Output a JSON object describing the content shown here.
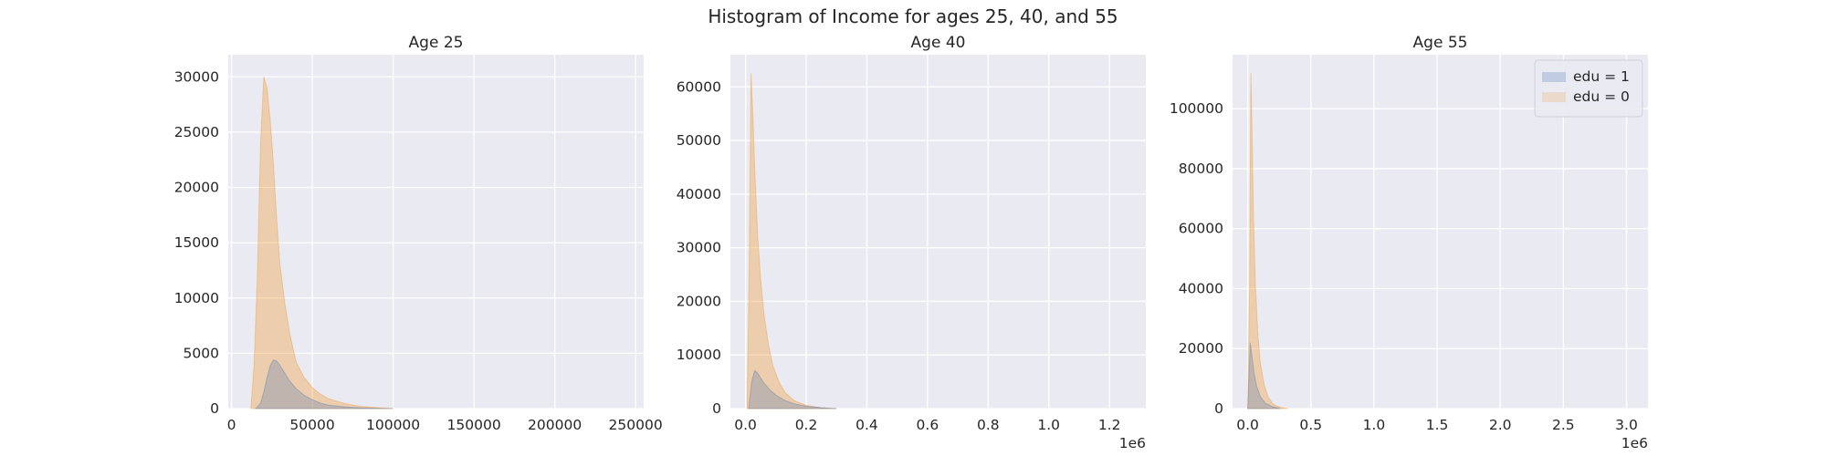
{
  "figure": {
    "title": "Histogram of Income for ages 25, 40, and 55",
    "colors": {
      "background": "#eaeaf2",
      "grid": "#ffffff",
      "edu1": "#4c72b0",
      "edu0": "#f0a040"
    }
  },
  "chart_data": [
    {
      "type": "area",
      "title": "Age 25",
      "xlim": [
        -2000,
        255000
      ],
      "ylim": [
        0,
        32000
      ],
      "xticks": [
        0,
        50000,
        100000,
        150000,
        200000,
        250000
      ],
      "xtick_labels": [
        "0",
        "50000",
        "100000",
        "150000",
        "200000",
        "250000"
      ],
      "yticks": [
        0,
        5000,
        10000,
        15000,
        20000,
        25000,
        30000
      ],
      "ytick_labels": [
        "0",
        "5000",
        "10000",
        "15000",
        "20000",
        "25000",
        "30000"
      ],
      "x_offset_label": "",
      "grid": true,
      "legend": null,
      "series": [
        {
          "label": "edu = 0",
          "color": "#f0a040",
          "x": [
            12000,
            14000,
            16000,
            18000,
            20000,
            22000,
            24000,
            26000,
            28000,
            30000,
            33000,
            36000,
            40000,
            45000,
            50000,
            55000,
            60000,
            70000,
            80000,
            90000,
            100000
          ],
          "y": [
            0,
            4000,
            12000,
            24000,
            30000,
            29000,
            26000,
            22000,
            17000,
            13000,
            9500,
            6800,
            4200,
            2800,
            1900,
            1300,
            900,
            450,
            200,
            80,
            0
          ]
        },
        {
          "label": "edu = 1",
          "color": "#4c72b0",
          "x": [
            15000,
            18000,
            20000,
            22000,
            24000,
            26000,
            28000,
            30000,
            33000,
            36000,
            40000,
            45000,
            50000,
            55000,
            60000,
            70000,
            80000,
            90000,
            100000
          ],
          "y": [
            0,
            500,
            1500,
            2800,
            3900,
            4400,
            4300,
            3900,
            3200,
            2500,
            1800,
            1200,
            800,
            500,
            320,
            150,
            70,
            30,
            0
          ]
        }
      ]
    },
    {
      "type": "area",
      "title": "Age 40",
      "xlim": [
        -50000,
        1320000
      ],
      "ylim": [
        0,
        66000
      ],
      "xticks": [
        0,
        200000,
        400000,
        600000,
        800000,
        1000000,
        1200000
      ],
      "xtick_labels": [
        "0.0",
        "0.2",
        "0.4",
        "0.6",
        "0.8",
        "1.0",
        "1.2"
      ],
      "yticks": [
        0,
        10000,
        20000,
        30000,
        40000,
        50000,
        60000
      ],
      "ytick_labels": [
        "0",
        "10000",
        "20000",
        "30000",
        "40000",
        "50000",
        "60000"
      ],
      "x_offset_label": "1e6",
      "grid": true,
      "legend": null,
      "series": [
        {
          "label": "edu = 0",
          "color": "#f0a040",
          "x": [
            5000,
            12000,
            18000,
            24000,
            30000,
            40000,
            50000,
            60000,
            75000,
            90000,
            110000,
            130000,
            160000,
            200000,
            250000,
            300000
          ],
          "y": [
            0,
            25000,
            62500,
            55000,
            45000,
            32000,
            24000,
            18000,
            12000,
            8000,
            5000,
            3000,
            1500,
            600,
            150,
            0
          ]
        },
        {
          "label": "edu = 1",
          "color": "#4c72b0",
          "x": [
            10000,
            20000,
            30000,
            40000,
            50000,
            60000,
            80000,
            100000,
            130000,
            160000,
            200000,
            250000,
            300000
          ],
          "y": [
            0,
            5000,
            7100,
            6600,
            5700,
            4800,
            3500,
            2500,
            1500,
            900,
            450,
            150,
            0
          ]
        }
      ]
    },
    {
      "type": "area",
      "title": "Age 55",
      "xlim": [
        -120000,
        3170000
      ],
      "ylim": [
        0,
        118000
      ],
      "xticks": [
        0,
        500000,
        1000000,
        1500000,
        2000000,
        2500000,
        3000000
      ],
      "xtick_labels": [
        "0.0",
        "0.5",
        "1.0",
        "1.5",
        "2.0",
        "2.5",
        "3.0"
      ],
      "yticks": [
        0,
        20000,
        40000,
        60000,
        80000,
        100000
      ],
      "ytick_labels": [
        "0",
        "20000",
        "40000",
        "60000",
        "80000",
        "100000"
      ],
      "x_offset_label": "1e6",
      "grid": true,
      "legend": {
        "position": "upper right",
        "entries": [
          "edu = 1",
          "edu = 0"
        ]
      },
      "series": [
        {
          "label": "edu = 0",
          "color": "#f0a040",
          "x": [
            0,
            15000,
            25000,
            35000,
            45000,
            60000,
            80000,
            100000,
            130000,
            160000,
            200000,
            250000,
            320000
          ],
          "y": [
            0,
            40000,
            112000,
            90000,
            65000,
            42000,
            25000,
            15000,
            8000,
            4000,
            1500,
            500,
            0
          ]
        },
        {
          "label": "edu = 1",
          "color": "#4c72b0",
          "x": [
            0,
            20000,
            35000,
            50000,
            70000,
            100000,
            140000,
            200000,
            260000
          ],
          "y": [
            0,
            22000,
            17000,
            12000,
            7500,
            4000,
            1800,
            600,
            0
          ]
        }
      ]
    }
  ]
}
